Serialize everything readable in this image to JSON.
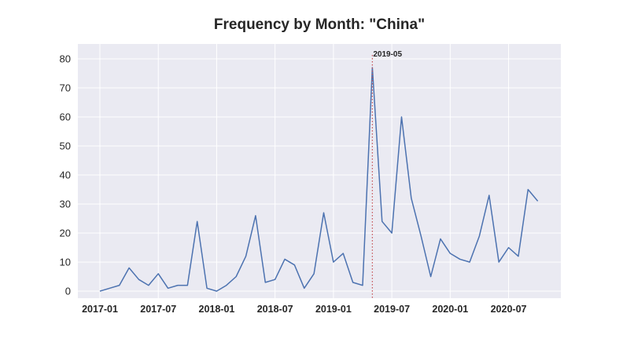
{
  "chart_data": {
    "type": "line",
    "title": "Frequency by Month: \"China\"",
    "xlabel": "",
    "ylabel": "",
    "ylim": [
      -2,
      82
    ],
    "yticks": [
      0,
      10,
      20,
      30,
      40,
      50,
      60,
      70,
      80
    ],
    "xticks": [
      "2017-01",
      "2017-07",
      "2018-01",
      "2018-07",
      "2019-01",
      "2019-07",
      "2020-01",
      "2020-07"
    ],
    "grid": true,
    "x": [
      "2017-01",
      "2017-02",
      "2017-03",
      "2017-04",
      "2017-05",
      "2017-06",
      "2017-07",
      "2017-08",
      "2017-09",
      "2017-10",
      "2017-11",
      "2017-12",
      "2018-01",
      "2018-02",
      "2018-03",
      "2018-04",
      "2018-05",
      "2018-06",
      "2018-07",
      "2018-08",
      "2018-09",
      "2018-10",
      "2018-11",
      "2018-12",
      "2019-01",
      "2019-02",
      "2019-03",
      "2019-04",
      "2019-05",
      "2019-06",
      "2019-07",
      "2019-08",
      "2019-09",
      "2019-10",
      "2019-11",
      "2019-12",
      "2020-01",
      "2020-02",
      "2020-03",
      "2020-04",
      "2020-05",
      "2020-06",
      "2020-07",
      "2020-08",
      "2020-09",
      "2020-10"
    ],
    "series": [
      {
        "color": "#4c72b0",
        "values": [
          0,
          1,
          2,
          8,
          4,
          2,
          6,
          1,
          2,
          2,
          24,
          1,
          0,
          2,
          5,
          12,
          26,
          3,
          4,
          11,
          9,
          1,
          6,
          27,
          10,
          13,
          3,
          2,
          77,
          24,
          20,
          60,
          32,
          19,
          5,
          18,
          13,
          11,
          10,
          19,
          33,
          10,
          15,
          12,
          35,
          31
        ]
      }
    ],
    "annotation": {
      "x": "2019-05",
      "label": "2019-05",
      "line_color": "#c44e52",
      "line_style": "dotted"
    }
  },
  "colors": {
    "background": "#eaeaf2",
    "grid": "#ffffff",
    "line": "#4c72b0",
    "marker_line": "#c44e52"
  }
}
